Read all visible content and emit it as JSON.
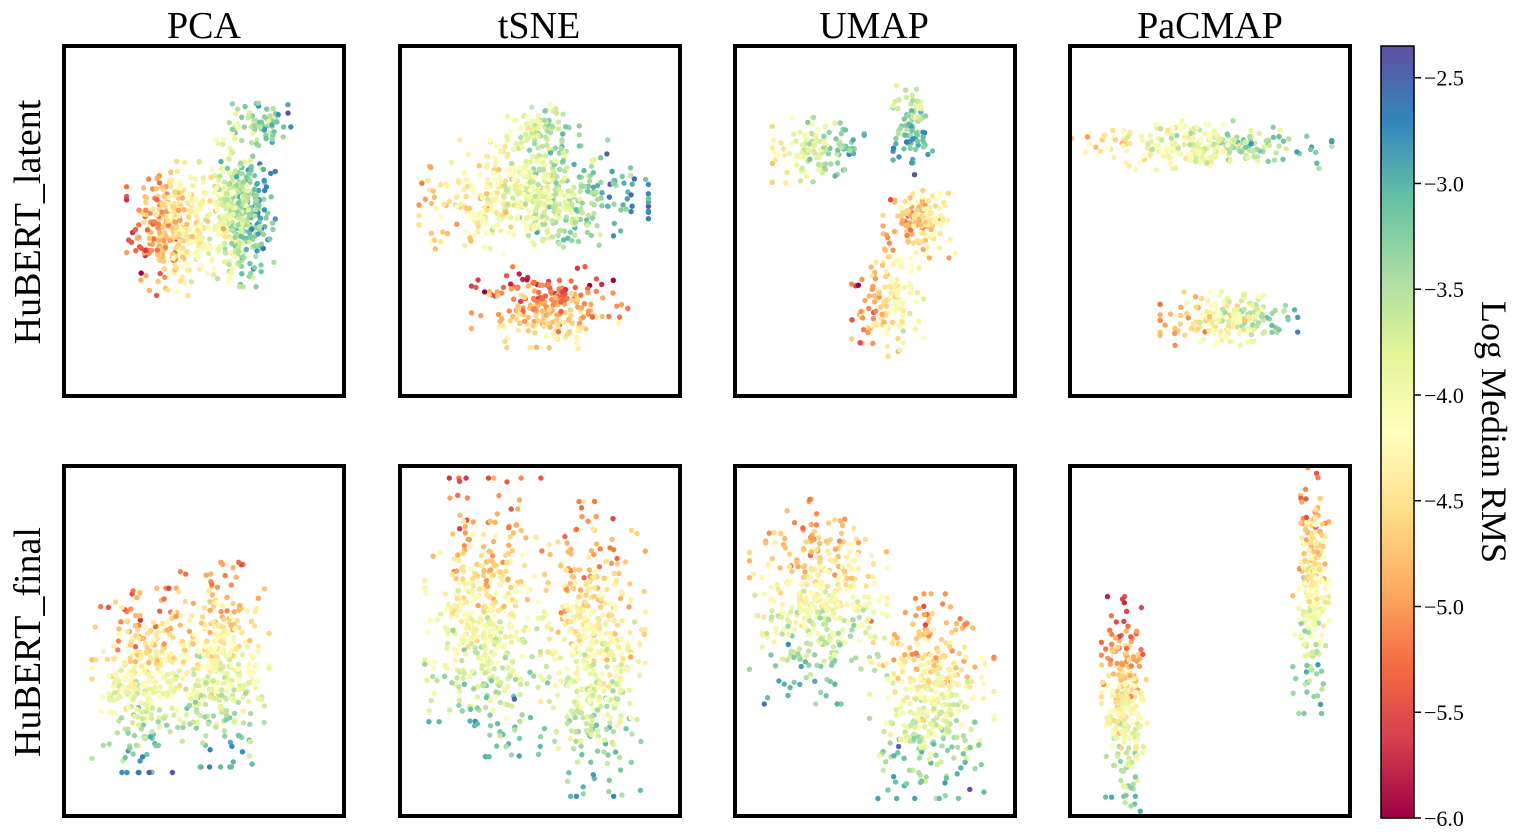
{
  "chart_data": {
    "type": "scatter",
    "columns": [
      "PCA",
      "tSNE",
      "UMAP",
      "PaCMAP"
    ],
    "rows": [
      "HuBERT_latent",
      "HuBERT_final"
    ],
    "axes_ticks": "none",
    "colorbar": {
      "label": "Log Median RMS",
      "colormap": "Spectral",
      "range": [
        -6.0,
        -2.35
      ],
      "ticks": [
        -2.5,
        -3.0,
        -3.5,
        -4.0,
        -4.5,
        -5.0,
        -5.5,
        -6.0
      ],
      "tick_labels": [
        "−2.5",
        "−3.0",
        "−3.5",
        "−4.0",
        "−4.5",
        "−5.0",
        "−5.5",
        "−6.0"
      ]
    },
    "panels": [
      {
        "row": "HuBERT_latent",
        "method": "PCA",
        "clusters": [
          {
            "cx": -0.25,
            "cy": -0.05,
            "sx": 0.28,
            "sy": 0.33,
            "n": 340,
            "v0": -5.3,
            "v1": -3.9,
            "grad": "x"
          },
          {
            "cx": 0.28,
            "cy": 0.05,
            "sx": 0.22,
            "sy": 0.36,
            "n": 420,
            "v0": -4.3,
            "v1": -2.8,
            "grad": "x"
          },
          {
            "cx": 0.45,
            "cy": 0.62,
            "sx": 0.2,
            "sy": 0.14,
            "n": 80,
            "v0": -3.6,
            "v1": -3.0,
            "grad": "x"
          }
        ]
      },
      {
        "row": "HuBERT_latent",
        "method": "tSNE",
        "clusters": [
          {
            "cx": 0.0,
            "cy": 0.58,
            "sx": 0.24,
            "sy": 0.14,
            "n": 90,
            "v0": -4.2,
            "v1": -3.2,
            "grad": "x"
          },
          {
            "cx": -0.05,
            "cy": 0.15,
            "sx": 0.7,
            "sy": 0.28,
            "n": 560,
            "v0": -4.8,
            "v1": -2.9,
            "grad": "x"
          },
          {
            "cx": 0.08,
            "cy": -0.55,
            "sx": 0.48,
            "sy": 0.2,
            "n": 230,
            "v0": -5.6,
            "v1": -4.3,
            "grad": "y"
          }
        ]
      },
      {
        "row": "HuBERT_latent",
        "method": "UMAP",
        "clusters": [
          {
            "cx": 0.3,
            "cy": 0.58,
            "sx": 0.12,
            "sy": 0.22,
            "n": 90,
            "v0": -3.9,
            "v1": -2.6,
            "grad": "y"
          },
          {
            "cx": -0.45,
            "cy": 0.45,
            "sx": 0.28,
            "sy": 0.16,
            "n": 120,
            "v0": -4.4,
            "v1": -3.0,
            "grad": "x"
          },
          {
            "cx": 0.35,
            "cy": 0.0,
            "sx": 0.22,
            "sy": 0.18,
            "n": 140,
            "v0": -5.0,
            "v1": -4.2,
            "grad": "x"
          },
          {
            "cx": 0.1,
            "cy": -0.55,
            "sx": 0.22,
            "sy": 0.28,
            "n": 140,
            "v0": -5.2,
            "v1": -3.6,
            "grad": "x"
          }
        ]
      },
      {
        "row": "HuBERT_latent",
        "method": "PaCMAP",
        "clusters": [
          {
            "cx": -0.1,
            "cy": 0.48,
            "sx": 0.82,
            "sy": 0.12,
            "n": 260,
            "v0": -4.6,
            "v1": -3.1,
            "grad": "x"
          },
          {
            "cx": 0.15,
            "cy": -0.62,
            "sx": 0.42,
            "sy": 0.13,
            "n": 210,
            "v0": -5.0,
            "v1": -3.1,
            "grad": "x"
          }
        ]
      },
      {
        "row": "HuBERT_final",
        "method": "PCA",
        "clusters": [
          {
            "cx": -0.5,
            "cy": -0.25,
            "sx": 0.3,
            "sy": 0.45,
            "n": 320,
            "v0": -5.2,
            "v1": -3.0,
            "grad": "y"
          },
          {
            "cx": 0.1,
            "cy": -0.15,
            "sx": 0.32,
            "sy": 0.5,
            "n": 380,
            "v0": -5.2,
            "v1": -3.0,
            "grad": "y"
          }
        ]
      },
      {
        "row": "HuBERT_final",
        "method": "tSNE",
        "clusters": [
          {
            "cx": -0.42,
            "cy": 0.15,
            "sx": 0.38,
            "sy": 0.68,
            "n": 480,
            "v0": -5.2,
            "v1": -3.1,
            "grad": "y"
          },
          {
            "cx": 0.42,
            "cy": -0.05,
            "sx": 0.32,
            "sy": 0.72,
            "n": 460,
            "v0": -5.2,
            "v1": -3.1,
            "grad": "y"
          }
        ]
      },
      {
        "row": "HuBERT_final",
        "method": "UMAP",
        "clusters": [
          {
            "cx": -0.45,
            "cy": 0.25,
            "sx": 0.42,
            "sy": 0.5,
            "n": 420,
            "v0": -5.2,
            "v1": -3.0,
            "grad": "y"
          },
          {
            "cx": 0.45,
            "cy": -0.35,
            "sx": 0.38,
            "sy": 0.5,
            "n": 400,
            "v0": -5.2,
            "v1": -3.0,
            "grad": "y"
          }
        ]
      },
      {
        "row": "HuBERT_final",
        "method": "PaCMAP",
        "clusters": [
          {
            "cx": -0.68,
            "cy": -0.42,
            "sx": 0.14,
            "sy": 0.54,
            "n": 260,
            "v0": -5.6,
            "v1": -3.0,
            "grad": "y"
          },
          {
            "cx": 0.8,
            "cy": 0.32,
            "sx": 0.11,
            "sy": 0.6,
            "n": 240,
            "v0": -5.3,
            "v1": -3.2,
            "grad": "y"
          }
        ]
      }
    ]
  }
}
